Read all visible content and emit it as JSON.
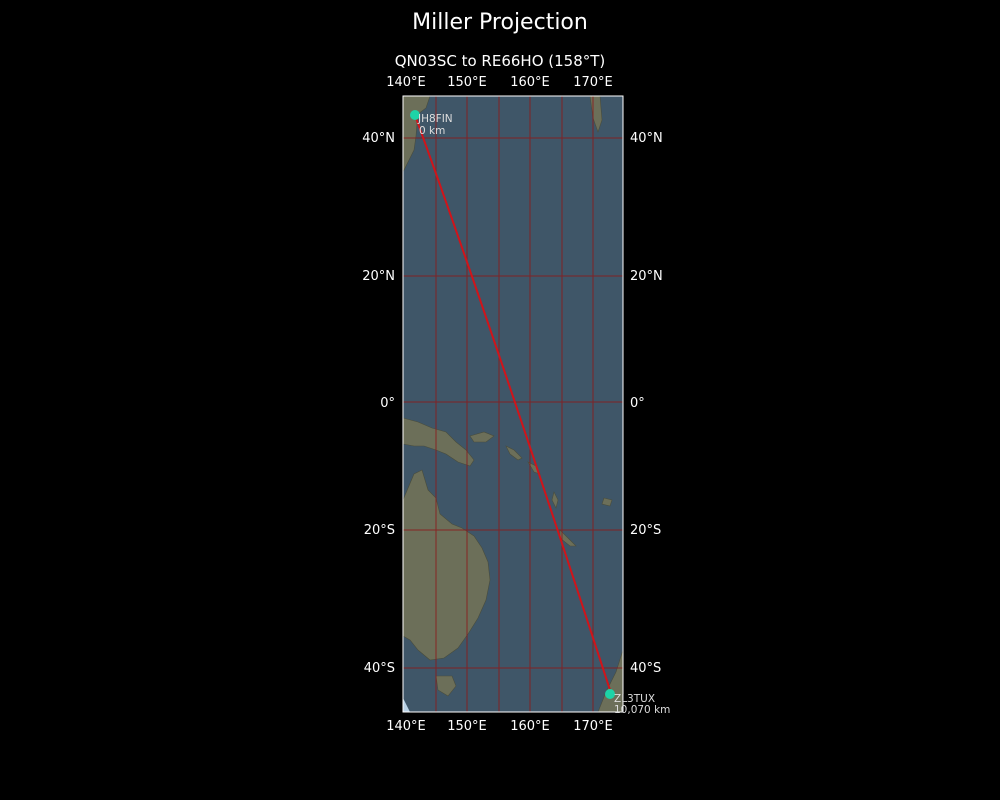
{
  "title": "Miller Projection",
  "subtitle": "QN03SC to RE66HO (158°T)",
  "colors": {
    "background": "#000000",
    "ocean": "#3f5668",
    "land": "#6c6f59",
    "grid": "#8b1a1a",
    "route": "#d0141a",
    "station": "#1dd3a7"
  },
  "axes": {
    "lon_ticks": [
      "140°E",
      "150°E",
      "160°E",
      "170°E"
    ],
    "lat_ticks": [
      "40°N",
      "20°N",
      "0°",
      "20°S",
      "40°S"
    ]
  },
  "chart_data": {
    "type": "map",
    "projection": "Miller",
    "extent": {
      "lon": [
        139.5,
        175
      ],
      "lat": [
        -45,
        45
      ]
    },
    "grid": true,
    "route": {
      "bearing": "158°T"
    },
    "points": [
      {
        "name": "JH8FIN",
        "distance": "0 km",
        "lon": 141.8,
        "lat": 42.3
      },
      {
        "name": "ZL3TUX",
        "distance": "10,070 km",
        "lon": 172.5,
        "lat": -43.7
      }
    ]
  }
}
